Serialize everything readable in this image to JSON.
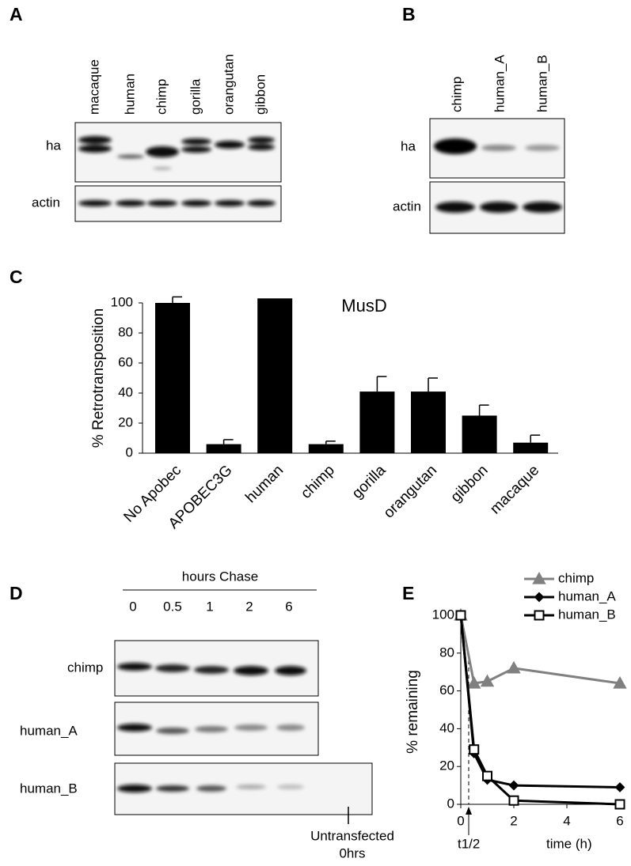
{
  "panels": {
    "A": {
      "label": "A",
      "lanes": [
        "macaque",
        "human",
        "chimp",
        "gorilla",
        "orangutan",
        "gibbon"
      ],
      "rows": [
        "ha",
        "actin"
      ]
    },
    "B": {
      "label": "B",
      "lanes": [
        "chimp",
        "human_A",
        "human_B"
      ],
      "rows": [
        "ha",
        "actin"
      ]
    },
    "D": {
      "label": "D",
      "header": "hours Chase",
      "lanes": [
        "0",
        "0.5",
        "1",
        "2",
        "6"
      ],
      "rows": [
        "chimp",
        "human_A",
        "human_B"
      ],
      "note": [
        "Untransfected",
        "0hrs"
      ]
    }
  },
  "chart_data": [
    {
      "type": "bar",
      "panel_label": "C",
      "title": "MusD",
      "y_label": "% Retrotransposition",
      "categories": [
        "No Apobec",
        "APOBEC3G",
        "human",
        "chimp",
        "gorilla",
        "orangutan",
        "gibbon",
        "macaque"
      ],
      "values": [
        100,
        6,
        103,
        6,
        41,
        41,
        25,
        7
      ],
      "errors": [
        4,
        3,
        null,
        2,
        10,
        9,
        7,
        5
      ],
      "color": "#000000",
      "ylim": [
        0,
        100
      ],
      "yticks": [
        0,
        20,
        40,
        60,
        80,
        100
      ]
    },
    {
      "type": "line",
      "panel_label": "E",
      "y_label": "% remaining",
      "x_label": "time (h)",
      "annotation": "t1/2",
      "x": [
        0,
        0.5,
        1,
        2,
        6
      ],
      "series": [
        {
          "name": "chimp",
          "color": "#808080",
          "marker": "triangle",
          "values": [
            100,
            64,
            65,
            72,
            64
          ]
        },
        {
          "name": "human_A",
          "color": "#000000",
          "marker": "diamond",
          "values": [
            100,
            27,
            13,
            10,
            9
          ]
        },
        {
          "name": "human_B",
          "color": "#000000",
          "marker": "square",
          "values": [
            100,
            29,
            15,
            2,
            0
          ]
        }
      ],
      "xlim": [
        0,
        6
      ],
      "ylim": [
        0,
        100
      ],
      "xticks": [
        0,
        2,
        4,
        6
      ],
      "yticks": [
        0,
        20,
        40,
        60,
        80,
        100
      ]
    }
  ]
}
